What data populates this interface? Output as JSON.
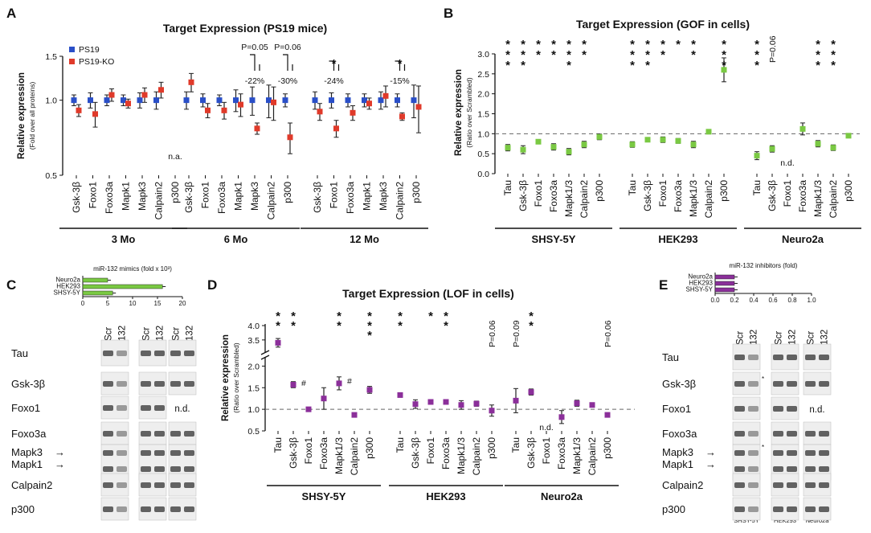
{
  "colors": {
    "blue": "#2a4fc8",
    "red": "#e03a2a",
    "green": "#7ac943",
    "purple": "#8b2f9a",
    "bar_green": "#7ac943",
    "bar_purple": "#8b2f9a"
  },
  "panels": {
    "A": "A",
    "B": "B",
    "C": "C",
    "D": "D",
    "E": "E"
  },
  "chart_data": [
    {
      "id": "A",
      "type": "scatter",
      "title": "Target Expression (PS19 mice)",
      "ylabel": "Relative expression",
      "ylabel_sub": "(Fold over all proteins)",
      "ylim": [
        0.5,
        1.5
      ],
      "yscale": "log",
      "yticks": [
        "0.5",
        "1.0",
        "1.5"
      ],
      "legend": [
        "PS19",
        "PS19-KO"
      ],
      "categories": [
        "Gsk-3β",
        "Foxo1",
        "Foxo3a",
        "Mapk1",
        "Mapk3",
        "Calpain2",
        "p300"
      ],
      "groups": [
        "3 Mo",
        "6 Mo",
        "12 Mo"
      ],
      "series": [
        {
          "name": "PS19",
          "values": [
            [
              1.0,
              1.0,
              1.0,
              1.0,
              1.0,
              1.0,
              null
            ],
            [
              1.0,
              1.0,
              1.0,
              1.0,
              1.0,
              1.0,
              1.0
            ],
            [
              1.0,
              1.0,
              1.0,
              1.0,
              1.0,
              1.0,
              1.0
            ]
          ],
          "errors": [
            [
              0.05,
              0.07,
              0.05,
              0.05,
              0.07,
              0.08,
              null
            ],
            [
              0.08,
              0.06,
              0.05,
              0.1,
              0.13,
              0.15,
              0.06
            ],
            [
              0.08,
              0.07,
              0.06,
              0.06,
              0.08,
              0.06,
              0.15
            ]
          ]
        },
        {
          "name": "PS19-KO",
          "values": [
            [
              0.91,
              0.88,
              1.05,
              0.97,
              1.05,
              1.1,
              null
            ],
            [
              1.18,
              0.91,
              0.91,
              0.96,
              0.77,
              0.98,
              0.71
            ],
            [
              0.9,
              0.77,
              0.89,
              0.97,
              1.04,
              0.86,
              0.94
            ]
          ],
          "errors": [
            [
              0.05,
              0.1,
              0.06,
              0.04,
              0.07,
              0.08,
              null
            ],
            [
              0.1,
              0.06,
              0.07,
              0.1,
              0.04,
              0.15,
              0.1
            ],
            [
              0.07,
              0.06,
              0.06,
              0.05,
              0.1,
              0.03,
              0.2
            ]
          ]
        }
      ],
      "annotations": {
        "na": "n.a.",
        "marks": [
          {
            "group": 1,
            "cat": 4,
            "sig": "P=0.05",
            "pct": "-22%"
          },
          {
            "group": 1,
            "cat": 6,
            "sig": "P=0.06",
            "pct": "-30%"
          },
          {
            "group": 2,
            "cat": 1,
            "sig": "*",
            "pct": "-24%"
          },
          {
            "group": 2,
            "cat": 5,
            "sig": "*",
            "pct": "-15%"
          }
        ]
      }
    },
    {
      "id": "B",
      "type": "scatter",
      "title": "Target Expression (GOF in cells)",
      "ylabel": "Relative expression",
      "ylabel_sub": "(Ratio over Scrambled)",
      "ylim": [
        0.0,
        3.0
      ],
      "yticks": [
        "0.0",
        "0.5",
        "1.0",
        "1.5",
        "2.0",
        "2.5",
        "3.0"
      ],
      "categories": [
        "Tau",
        "Gsk-3β",
        "Foxo1",
        "Foxo3a",
        "Mapk1/3",
        "Calpain2",
        "p300"
      ],
      "groups": [
        "SHSY-5Y",
        "HEK293",
        "Neuro2a"
      ],
      "values": [
        [
          0.65,
          0.6,
          0.8,
          0.67,
          0.55,
          0.73,
          0.92
        ],
        [
          0.73,
          0.85,
          0.85,
          0.82,
          0.73,
          1.05,
          2.6
        ],
        [
          0.45,
          0.62,
          null,
          1.12,
          0.75,
          0.65,
          0.95
        ]
      ],
      "errors": [
        [
          0.08,
          0.1,
          0.0,
          0.08,
          0.08,
          0.08,
          0.07
        ],
        [
          0.07,
          0.0,
          0.07,
          0.06,
          0.08,
          0.0,
          0.3
        ],
        [
          0.1,
          0.08,
          null,
          0.15,
          0.08,
          0.07,
          0.0
        ]
      ],
      "stars": [
        [
          "***",
          "***",
          "**",
          "**",
          "***",
          "**",
          ""
        ],
        [
          "***",
          "***",
          "**",
          "*",
          "**",
          "",
          "***"
        ],
        [
          "***",
          "P=0.06",
          "",
          "",
          "***",
          "***",
          ""
        ]
      ],
      "nd": "n.d."
    },
    {
      "id": "D",
      "type": "scatter",
      "title": "Target Expression (LOF in cells)",
      "ylabel": "Relative expression",
      "ylabel_sub": "(Ratio over Scrambled)",
      "ylim": [
        0.5,
        4.0
      ],
      "yticks": [
        "0.5",
        "1.0",
        "1.5",
        "2.0",
        "3.5",
        "4.0"
      ],
      "categories": [
        "Tau",
        "Gsk-3β",
        "Foxo1",
        "Foxo3a",
        "Mapk1/3",
        "Calpain2",
        "p300"
      ],
      "groups": [
        "SHSY-5Y",
        "HEK293",
        "Neuro2a"
      ],
      "values": [
        [
          3.4,
          1.57,
          1.0,
          1.25,
          1.6,
          0.87,
          1.45
        ],
        [
          1.33,
          1.12,
          1.17,
          1.17,
          1.1,
          1.13,
          0.97
        ],
        [
          1.2,
          1.4,
          null,
          0.82,
          1.14,
          1.1,
          0.87
        ]
      ],
      "errors": [
        [
          0.15,
          0.07,
          0.0,
          0.25,
          0.15,
          0.0,
          0.08
        ],
        [
          0.05,
          0.1,
          0.05,
          0.0,
          0.1,
          0.06,
          0.13
        ],
        [
          0.28,
          0.07,
          null,
          0.15,
          0.07,
          0.05,
          0.05
        ]
      ],
      "stars": [
        [
          "**",
          "**",
          "",
          "",
          "**",
          "",
          "***"
        ],
        [
          "**",
          "",
          "*",
          "**",
          "",
          "",
          "P=0.06"
        ],
        [
          "P=0.09",
          "**",
          "",
          "",
          "",
          "",
          "P=0.06"
        ]
      ],
      "hash": "#",
      "nd": "n.d."
    },
    {
      "id": "C",
      "type": "bar",
      "title": "miR-132 mimics (fold x 10³)",
      "categories": [
        "Neuro2a",
        "HEK293",
        "SHSY-5Y"
      ],
      "values": [
        5,
        16,
        6
      ],
      "xlim": [
        0,
        20
      ],
      "xticks": [
        "0",
        "5",
        "10",
        "15",
        "20"
      ]
    },
    {
      "id": "E",
      "type": "bar",
      "title": "miR-132 inhibitors (fold)",
      "categories": [
        "Neuro2a",
        "HEK293",
        "SHSY-5Y"
      ],
      "values": [
        0.2,
        0.2,
        0.2
      ],
      "xlim": [
        0,
        1.0
      ],
      "xticks": [
        "0.0",
        "0.2",
        "0.4",
        "0.6",
        "0.8",
        "1.0"
      ]
    }
  ],
  "blots": {
    "lane_labels": [
      "Scr",
      "132"
    ],
    "cells": [
      "SHSY-5Y",
      "HEK293",
      "Neuro2a"
    ],
    "proteins_C": [
      "Tau",
      "Gsk-3β",
      "Foxo1",
      "Foxo3a",
      "Mapk3",
      "Mapk1",
      "Calpain2",
      "p300"
    ],
    "proteins_E": [
      "Tau",
      "Gsk-3β",
      "Foxo1",
      "Foxo3a",
      "Mapk3",
      "Mapk1",
      "Calpain2",
      "p300"
    ],
    "nd": "n.d.",
    "asterisk": "*"
  }
}
